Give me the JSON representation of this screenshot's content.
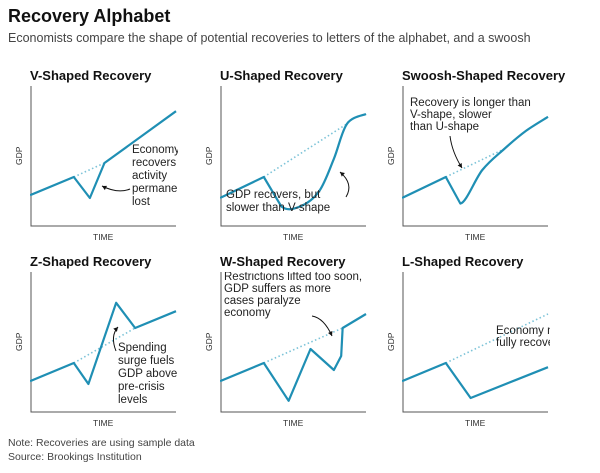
{
  "header": {
    "title": "Recovery Alphabet",
    "subtitle": "Economists compare the shape of potential recoveries to letters of the alphabet, and a swoosh"
  },
  "footer": {
    "note": "Note: Recoveries are using sample data",
    "source": "Source: Brookings Institution"
  },
  "colors": {
    "line": "#1f8fb4",
    "trend": "#7cc3d8",
    "axis": "#555555",
    "text": "#222222"
  },
  "chart_data": [
    {
      "type": "line",
      "title": "V-Shaped Recovery",
      "xlabel": "TIME",
      "ylabel": "GDP",
      "xlim": [
        0,
        100
      ],
      "ylim": [
        0,
        100
      ],
      "series": [
        {
          "name": "GDP",
          "x": [
            0,
            30,
            41,
            51,
            100
          ],
          "y": [
            22,
            35,
            20,
            45,
            82
          ]
        }
      ],
      "trend": {
        "x": [
          30,
          51
        ],
        "y": [
          35,
          45
        ]
      },
      "annotation": {
        "lines": [
          "Economy",
          "recovers but",
          "activity",
          "permanently",
          "lost"
        ]
      }
    },
    {
      "type": "line",
      "title": "U-Shaped Recovery",
      "xlabel": "TIME",
      "ylabel": "GDP",
      "xlim": [
        0,
        100
      ],
      "ylim": [
        0,
        100
      ],
      "series": [
        {
          "name": "GDP",
          "x": [
            0,
            30,
            42,
            55,
            68,
            78,
            87,
            100
          ],
          "y": [
            20,
            35,
            14,
            14,
            25,
            48,
            73,
            80
          ]
        }
      ],
      "trend": {
        "x": [
          30,
          87
        ],
        "y": [
          35,
          73
        ]
      },
      "annotation": {
        "lines": [
          "GDP recovers, but",
          "slower than V-shape"
        ]
      }
    },
    {
      "type": "line",
      "title": "Swoosh-Shaped Recovery",
      "xlabel": "TIME",
      "ylabel": "GDP",
      "xlim": [
        0,
        100
      ],
      "ylim": [
        0,
        100
      ],
      "series": [
        {
          "name": "GDP",
          "x": [
            0,
            30,
            40,
            55,
            70,
            85,
            100
          ],
          "y": [
            20,
            35,
            16,
            40,
            55,
            68,
            78
          ]
        }
      ],
      "trend": {
        "x": [
          30,
          70
        ],
        "y": [
          35,
          55
        ]
      },
      "annotation": {
        "lines": [
          "Recovery is longer than",
          "V-shape, slower",
          "than U-shape"
        ]
      }
    },
    {
      "type": "line",
      "title": "Z-Shaped Recovery",
      "xlabel": "TIME",
      "ylabel": "GDP",
      "xlim": [
        0,
        100
      ],
      "ylim": [
        0,
        100
      ],
      "series": [
        {
          "name": "GDP",
          "x": [
            0,
            30,
            40,
            59,
            72,
            100
          ],
          "y": [
            22,
            35,
            20,
            78,
            60,
            72
          ]
        }
      ],
      "trend": {
        "x": [
          30,
          72
        ],
        "y": [
          35,
          60
        ]
      },
      "annotation": {
        "lines": [
          "Spending",
          "surge fuels",
          "GDP above",
          "pre-crisis",
          "levels"
        ]
      }
    },
    {
      "type": "line",
      "title": "W-Shaped Recovery",
      "xlabel": "TIME",
      "ylabel": "GDP",
      "xlim": [
        0,
        100
      ],
      "ylim": [
        0,
        100
      ],
      "series": [
        {
          "name": "GDP",
          "x": [
            0,
            30,
            47,
            62,
            78,
            83,
            84,
            100
          ],
          "y": [
            22,
            35,
            8,
            45,
            30,
            40,
            60,
            70
          ]
        }
      ],
      "trend": {
        "x": [
          30,
          84
        ],
        "y": [
          35,
          60
        ]
      },
      "annotation": {
        "lines": [
          "Restrictions lifted too soon,",
          "GDP suffers as more",
          "cases paralyze",
          "economy"
        ]
      }
    },
    {
      "type": "line",
      "title": "L-Shaped Recovery",
      "xlabel": "TIME",
      "ylabel": "GDP",
      "xlim": [
        0,
        100
      ],
      "ylim": [
        0,
        100
      ],
      "series": [
        {
          "name": "GDP",
          "x": [
            0,
            30,
            47,
            100
          ],
          "y": [
            22,
            35,
            10,
            32
          ]
        }
      ],
      "trend": {
        "x": [
          30,
          100
        ],
        "y": [
          35,
          70
        ]
      },
      "annotation": {
        "lines": [
          "Economy never",
          "fully recovers"
        ]
      }
    }
  ]
}
